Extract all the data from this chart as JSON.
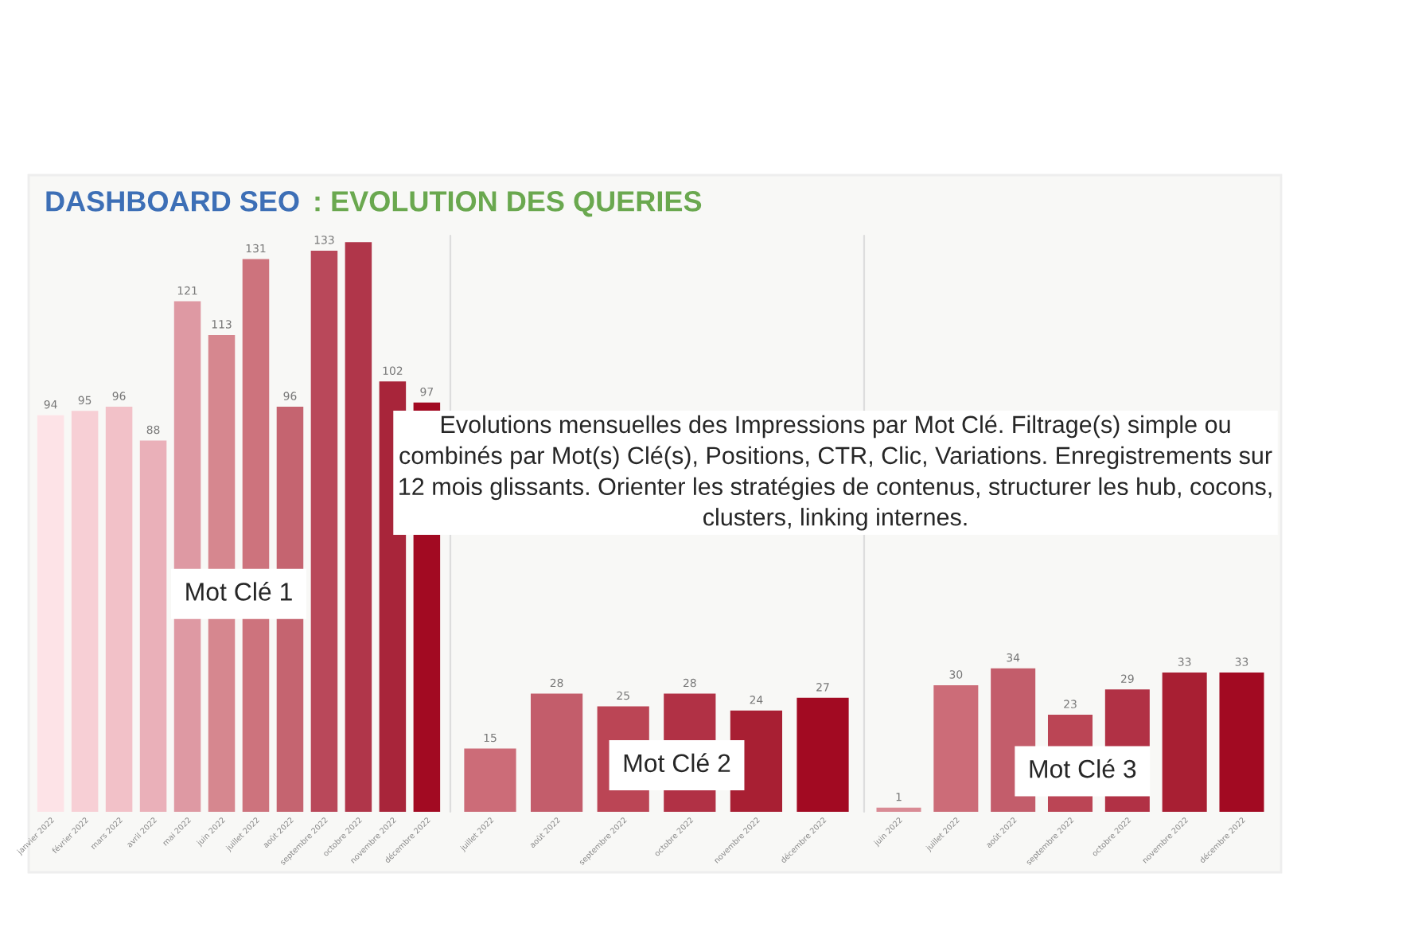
{
  "chart_data": [
    {
      "type": "bar",
      "title": "DASHBOARD SEO : EVOLUTION DES QUERIES",
      "tick_labels": "x",
      "annotations": [
        "Mot Clé 1"
      ],
      "categories": [
        "janvier 2022",
        "février 2022",
        "mars 2022",
        "avril 2022",
        "mai 2022",
        "juin 2022",
        "juillet 2022",
        "août 2022",
        "septembre 2022",
        "octobre 2022",
        "novembre 2022",
        "décembre 2022"
      ],
      "values": [
        94,
        95,
        96,
        88,
        121,
        113,
        131,
        96,
        133,
        135,
        102,
        97
      ],
      "value_labels": [
        "94",
        "95",
        "96",
        "88",
        "121",
        "113",
        "131",
        "96",
        "133",
        null,
        "102",
        "97"
      ],
      "colors": [
        "#fde3e7",
        "#f7cfd5",
        "#f2c1c8",
        "#eab0b9",
        "#de99a3",
        "#d6878f",
        "#cd737d",
        "#c56470",
        "#b9485a",
        "#b0364a",
        "#a8253a",
        "#a20a22"
      ]
    },
    {
      "type": "bar",
      "tick_labels": "x",
      "annotations": [
        "Mot Clé 2",
        "Evolutions mensuelles des Impressions par Mot Clé. Filtrage(s) simple ou combinés par Mot(s) Clé(s), Positions, CTR, Clic, Variations. Enregistrements sur 12 mois glissants. Orienter les stratégies de contenus, structurer les hub, cocons, clusters, linking internes."
      ],
      "categories": [
        "juillet 2022",
        "août 2022",
        "septembre 2022",
        "octobre 2022",
        "novembre 2022",
        "décembre 2022"
      ],
      "values": [
        15,
        28,
        25,
        28,
        24,
        27
      ],
      "value_labels": [
        "15",
        "28",
        "25",
        "28",
        "24",
        "27"
      ],
      "colors": [
        "#cc6c78",
        "#c35d6b",
        "#bb4555",
        "#b13145",
        "#a81f33",
        "#a20a22"
      ]
    },
    {
      "type": "bar",
      "tick_labels": "x",
      "annotations": [
        "Mot Clé 3"
      ],
      "categories": [
        "juin 2022",
        "juillet 2022",
        "août 2022",
        "septembre 2022",
        "octobre 2022",
        "novembre 2022",
        "décembre 2022"
      ],
      "values": [
        1,
        30,
        34,
        23,
        29,
        33,
        33
      ],
      "value_labels": [
        "1",
        "30",
        "34",
        "23",
        "29",
        "33",
        "33"
      ],
      "colors": [
        "#d98b95",
        "#cc6c78",
        "#c35d6b",
        "#bb4555",
        "#b13145",
        "#a81f33",
        "#a20a22"
      ]
    }
  ]
}
